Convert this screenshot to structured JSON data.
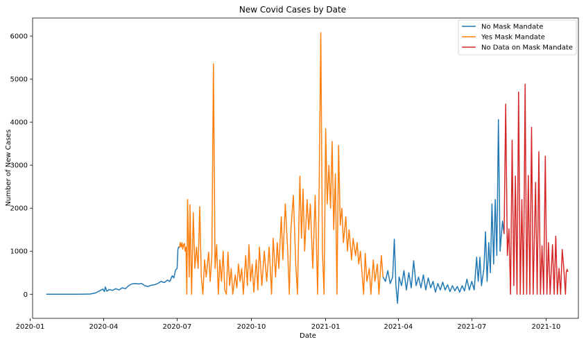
{
  "chart_data": {
    "type": "line",
    "title": "New Covid Cases by Date",
    "xlabel": "Date",
    "ylabel": "Number of New Cases",
    "x_range": [
      "2020-01-04",
      "2021-11-10"
    ],
    "ylim": [
      -560,
      6420
    ],
    "x_ticks": [
      {
        "date": "2020-01-01",
        "label": "2020-01"
      },
      {
        "date": "2020-04-01",
        "label": "2020-04"
      },
      {
        "date": "2020-07-01",
        "label": "2020-07"
      },
      {
        "date": "2020-10-01",
        "label": "2020-10"
      },
      {
        "date": "2021-01-01",
        "label": "2021-01"
      },
      {
        "date": "2021-04-01",
        "label": "2021-04"
      },
      {
        "date": "2021-07-01",
        "label": "2021-07"
      },
      {
        "date": "2021-10-01",
        "label": "2021-10"
      }
    ],
    "y_ticks": [
      0,
      1000,
      2000,
      3000,
      4000,
      5000,
      6000
    ],
    "grid": false,
    "legend_position": "top-right",
    "series": [
      {
        "name": "No Mask Mandate",
        "color": "#1f77b4",
        "points": [
          [
            "2020-01-21",
            0
          ],
          [
            "2020-02-10",
            0
          ],
          [
            "2020-03-01",
            0
          ],
          [
            "2020-03-15",
            5
          ],
          [
            "2020-03-22",
            30
          ],
          [
            "2020-03-27",
            80
          ],
          [
            "2020-03-31",
            120
          ],
          [
            "2020-04-02",
            60
          ],
          [
            "2020-04-03",
            170
          ],
          [
            "2020-04-05",
            70
          ],
          [
            "2020-04-08",
            110
          ],
          [
            "2020-04-12",
            90
          ],
          [
            "2020-04-16",
            130
          ],
          [
            "2020-04-20",
            100
          ],
          [
            "2020-04-24",
            150
          ],
          [
            "2020-04-28",
            130
          ],
          [
            "2020-05-02",
            200
          ],
          [
            "2020-05-06",
            240
          ],
          [
            "2020-05-10",
            250
          ],
          [
            "2020-05-14",
            240
          ],
          [
            "2020-05-18",
            250
          ],
          [
            "2020-05-22",
            200
          ],
          [
            "2020-05-26",
            180
          ],
          [
            "2020-05-30",
            210
          ],
          [
            "2020-06-03",
            220
          ],
          [
            "2020-06-07",
            250
          ],
          [
            "2020-06-11",
            300
          ],
          [
            "2020-06-15",
            270
          ],
          [
            "2020-06-19",
            330
          ],
          [
            "2020-06-22",
            300
          ],
          [
            "2020-06-25",
            430
          ],
          [
            "2020-06-27",
            380
          ],
          [
            "2020-06-29",
            560
          ],
          [
            "2020-07-01",
            600
          ],
          [
            "2020-07-02",
            1050
          ],
          [
            "2020-07-03",
            1100
          ],
          [
            "2020-07-04",
            1080
          ]
        ]
      },
      {
        "name": "Yes Mask Mandate",
        "color": "#ff7f0e",
        "points": [
          [
            "2020-07-04",
            1080
          ],
          [
            "2020-07-05",
            1200
          ],
          [
            "2020-07-06",
            1100
          ],
          [
            "2020-07-07",
            1200
          ],
          [
            "2020-07-08",
            1050
          ],
          [
            "2020-07-09",
            1150
          ],
          [
            "2020-07-10",
            1180
          ],
          [
            "2020-07-11",
            1000
          ],
          [
            "2020-07-12",
            1100
          ],
          [
            "2020-07-13",
            0
          ],
          [
            "2020-07-14",
            2200
          ],
          [
            "2020-07-16",
            400
          ],
          [
            "2020-07-17",
            2080
          ],
          [
            "2020-07-19",
            0
          ],
          [
            "2020-07-21",
            1900
          ],
          [
            "2020-07-23",
            600
          ],
          [
            "2020-07-25",
            1100
          ],
          [
            "2020-07-27",
            600
          ],
          [
            "2020-07-29",
            2040
          ],
          [
            "2020-07-31",
            400
          ],
          [
            "2020-08-02",
            0
          ],
          [
            "2020-08-04",
            800
          ],
          [
            "2020-08-06",
            400
          ],
          [
            "2020-08-09",
            980
          ],
          [
            "2020-08-11",
            300
          ],
          [
            "2020-08-13",
            900
          ],
          [
            "2020-08-15",
            5360
          ],
          [
            "2020-08-17",
            600
          ],
          [
            "2020-08-19",
            1150
          ],
          [
            "2020-08-21",
            0
          ],
          [
            "2020-08-23",
            800
          ],
          [
            "2020-08-25",
            300
          ],
          [
            "2020-08-27",
            1000
          ],
          [
            "2020-08-29",
            100
          ],
          [
            "2020-08-31",
            0
          ],
          [
            "2020-09-02",
            980
          ],
          [
            "2020-09-04",
            200
          ],
          [
            "2020-09-06",
            600
          ],
          [
            "2020-09-08",
            0
          ],
          [
            "2020-09-11",
            450
          ],
          [
            "2020-09-13",
            150
          ],
          [
            "2020-09-15",
            700
          ],
          [
            "2020-09-17",
            300
          ],
          [
            "2020-09-19",
            600
          ],
          [
            "2020-09-21",
            0
          ],
          [
            "2020-09-24",
            900
          ],
          [
            "2020-09-26",
            200
          ],
          [
            "2020-09-28",
            1150
          ],
          [
            "2020-09-30",
            300
          ],
          [
            "2020-10-02",
            700
          ],
          [
            "2020-10-04",
            50
          ],
          [
            "2020-10-07",
            800
          ],
          [
            "2020-10-09",
            100
          ],
          [
            "2020-10-11",
            1100
          ],
          [
            "2020-10-14",
            200
          ],
          [
            "2020-10-17",
            1000
          ],
          [
            "2020-10-20",
            300
          ],
          [
            "2020-10-23",
            1100
          ],
          [
            "2020-10-26",
            0
          ],
          [
            "2020-10-28",
            1300
          ],
          [
            "2020-10-31",
            400
          ],
          [
            "2020-11-02",
            1200
          ],
          [
            "2020-11-04",
            600
          ],
          [
            "2020-11-07",
            1800
          ],
          [
            "2020-11-09",
            800
          ],
          [
            "2020-11-12",
            2100
          ],
          [
            "2020-11-15",
            1000
          ],
          [
            "2020-11-17",
            0
          ],
          [
            "2020-11-19",
            1500
          ],
          [
            "2020-11-22",
            2300
          ],
          [
            "2020-11-25",
            700
          ],
          [
            "2020-11-27",
            0
          ],
          [
            "2020-11-30",
            2750
          ],
          [
            "2020-12-02",
            1300
          ],
          [
            "2020-12-04",
            2450
          ],
          [
            "2020-12-06",
            1000
          ],
          [
            "2020-12-09",
            2200
          ],
          [
            "2020-12-11",
            1500
          ],
          [
            "2020-12-13",
            2100
          ],
          [
            "2020-12-16",
            600
          ],
          [
            "2020-12-19",
            2300
          ],
          [
            "2020-12-22",
            0
          ],
          [
            "2020-12-24",
            2600
          ],
          [
            "2020-12-26",
            6080
          ],
          [
            "2020-12-28",
            1000
          ],
          [
            "2020-12-30",
            0
          ],
          [
            "2021-01-01",
            3850
          ],
          [
            "2021-01-03",
            2100
          ],
          [
            "2021-01-05",
            3000
          ],
          [
            "2021-01-07",
            2000
          ],
          [
            "2021-01-09",
            3550
          ],
          [
            "2021-01-11",
            1500
          ],
          [
            "2021-01-13",
            2800
          ],
          [
            "2021-01-15",
            0
          ],
          [
            "2021-01-17",
            3460
          ],
          [
            "2021-01-19",
            1600
          ],
          [
            "2021-01-21",
            2000
          ],
          [
            "2021-01-23",
            1200
          ],
          [
            "2021-01-26",
            1800
          ],
          [
            "2021-01-28",
            1000
          ],
          [
            "2021-01-30",
            1500
          ],
          [
            "2021-02-02",
            800
          ],
          [
            "2021-02-04",
            1300
          ],
          [
            "2021-02-07",
            900
          ],
          [
            "2021-02-09",
            1200
          ],
          [
            "2021-02-11",
            700
          ],
          [
            "2021-02-13",
            1000
          ],
          [
            "2021-02-15",
            500
          ],
          [
            "2021-02-17",
            0
          ],
          [
            "2021-02-19",
            950
          ],
          [
            "2021-02-21",
            300
          ],
          [
            "2021-02-24",
            600
          ],
          [
            "2021-02-26",
            0
          ],
          [
            "2021-03-01",
            800
          ],
          [
            "2021-03-03",
            300
          ],
          [
            "2021-03-06",
            700
          ],
          [
            "2021-03-08",
            0
          ],
          [
            "2021-03-11",
            900
          ],
          [
            "2021-03-13",
            400
          ]
        ]
      },
      {
        "name": "No Mask Mandate",
        "color": "#1f77b4",
        "points": [
          [
            "2021-03-13",
            400
          ],
          [
            "2021-03-16",
            300
          ],
          [
            "2021-03-19",
            550
          ],
          [
            "2021-03-22",
            250
          ],
          [
            "2021-03-25",
            400
          ],
          [
            "2021-03-27",
            1280
          ],
          [
            "2021-03-29",
            200
          ],
          [
            "2021-03-31",
            -210
          ],
          [
            "2021-04-02",
            400
          ],
          [
            "2021-04-05",
            200
          ],
          [
            "2021-04-08",
            550
          ],
          [
            "2021-04-11",
            100
          ],
          [
            "2021-04-14",
            500
          ],
          [
            "2021-04-17",
            150
          ],
          [
            "2021-04-20",
            780
          ],
          [
            "2021-04-23",
            200
          ],
          [
            "2021-04-26",
            400
          ],
          [
            "2021-04-29",
            150
          ],
          [
            "2021-05-02",
            450
          ],
          [
            "2021-05-05",
            100
          ],
          [
            "2021-05-08",
            380
          ],
          [
            "2021-05-11",
            150
          ],
          [
            "2021-05-14",
            300
          ],
          [
            "2021-05-17",
            50
          ],
          [
            "2021-05-20",
            250
          ],
          [
            "2021-05-23",
            100
          ],
          [
            "2021-05-26",
            280
          ],
          [
            "2021-05-29",
            100
          ],
          [
            "2021-06-01",
            220
          ],
          [
            "2021-06-04",
            60
          ],
          [
            "2021-06-07",
            200
          ],
          [
            "2021-06-10",
            80
          ],
          [
            "2021-06-13",
            180
          ],
          [
            "2021-06-16",
            50
          ],
          [
            "2021-06-19",
            200
          ],
          [
            "2021-06-22",
            80
          ],
          [
            "2021-06-25",
            350
          ],
          [
            "2021-06-28",
            100
          ],
          [
            "2021-07-01",
            300
          ],
          [
            "2021-07-04",
            100
          ],
          [
            "2021-07-07",
            860
          ],
          [
            "2021-07-09",
            300
          ],
          [
            "2021-07-11",
            860
          ],
          [
            "2021-07-13",
            200
          ],
          [
            "2021-07-16",
            600
          ],
          [
            "2021-07-18",
            1450
          ],
          [
            "2021-07-20",
            300
          ],
          [
            "2021-07-22",
            1200
          ],
          [
            "2021-07-24",
            500
          ],
          [
            "2021-07-26",
            2100
          ],
          [
            "2021-07-28",
            700
          ],
          [
            "2021-07-30",
            2200
          ],
          [
            "2021-08-01",
            900
          ],
          [
            "2021-08-03",
            4060
          ],
          [
            "2021-08-05",
            1000
          ],
          [
            "2021-08-08",
            1700
          ],
          [
            "2021-08-10",
            1400
          ]
        ]
      },
      {
        "name": "No Data on Mask Mandate",
        "color": "#d62728",
        "points": [
          [
            "2021-08-10",
            1400
          ],
          [
            "2021-08-12",
            4420
          ],
          [
            "2021-08-14",
            900
          ],
          [
            "2021-08-16",
            1520
          ],
          [
            "2021-08-18",
            0
          ],
          [
            "2021-08-20",
            3580
          ],
          [
            "2021-08-22",
            200
          ],
          [
            "2021-08-24",
            2750
          ],
          [
            "2021-08-26",
            0
          ],
          [
            "2021-08-28",
            4700
          ],
          [
            "2021-08-30",
            0
          ],
          [
            "2021-09-01",
            2200
          ],
          [
            "2021-09-03",
            0
          ],
          [
            "2021-09-05",
            4880
          ],
          [
            "2021-09-07",
            0
          ],
          [
            "2021-09-09",
            2760
          ],
          [
            "2021-09-11",
            0
          ],
          [
            "2021-09-13",
            3880
          ],
          [
            "2021-09-15",
            0
          ],
          [
            "2021-09-18",
            2600
          ],
          [
            "2021-09-20",
            0
          ],
          [
            "2021-09-22",
            3310
          ],
          [
            "2021-09-24",
            0
          ],
          [
            "2021-09-26",
            1130
          ],
          [
            "2021-09-28",
            0
          ],
          [
            "2021-09-30",
            3210
          ],
          [
            "2021-10-02",
            0
          ],
          [
            "2021-10-04",
            1200
          ],
          [
            "2021-10-06",
            0
          ],
          [
            "2021-10-09",
            1150
          ],
          [
            "2021-10-11",
            0
          ],
          [
            "2021-10-13",
            1350
          ],
          [
            "2021-10-15",
            0
          ],
          [
            "2021-10-17",
            600
          ],
          [
            "2021-10-19",
            0
          ],
          [
            "2021-10-21",
            1040
          ],
          [
            "2021-10-23",
            600
          ],
          [
            "2021-10-25",
            0
          ],
          [
            "2021-10-26",
            500
          ],
          [
            "2021-10-27",
            580
          ],
          [
            "2021-10-28",
            520
          ]
        ]
      }
    ],
    "legend": [
      {
        "label": "No Mask Mandate",
        "color": "#1f77b4"
      },
      {
        "label": "Yes Mask Mandate",
        "color": "#ff7f0e"
      },
      {
        "label": "No Data on Mask Mandate",
        "color": "#d62728"
      }
    ]
  }
}
